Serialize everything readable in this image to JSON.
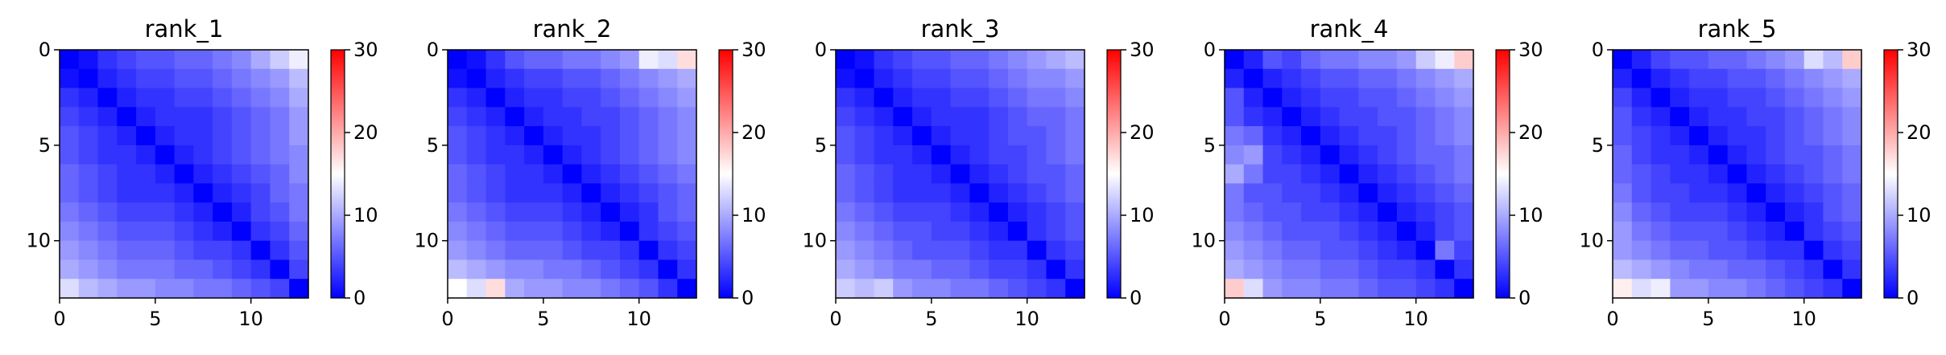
{
  "chart_data": [
    {
      "type": "heatmap",
      "title": "rank_1",
      "shape": [
        13,
        13
      ],
      "vmin": 0,
      "vmax": 30,
      "x_ticks": [
        "0",
        "5",
        "10"
      ],
      "x_tick_values": [
        0,
        5,
        10
      ],
      "y_ticks": [
        "0",
        "5",
        "10"
      ],
      "y_tick_values": [
        0,
        5,
        10
      ],
      "colorbar_ticks": [
        "0",
        "10",
        "20",
        "30"
      ],
      "colorbar_tick_values": [
        0,
        10,
        20,
        30
      ],
      "colormap": [
        "#0000ff",
        "#ffffff",
        "#ff0000"
      ],
      "values": [
        [
          0,
          1,
          3,
          4,
          5,
          5,
          6,
          6,
          7,
          8,
          10,
          12,
          14
        ],
        [
          1,
          0,
          2,
          3,
          4,
          4,
          5,
          5,
          6,
          7,
          8,
          9,
          11
        ],
        [
          3,
          2,
          0,
          2,
          3,
          3,
          4,
          4,
          5,
          6,
          7,
          8,
          10
        ],
        [
          4,
          3,
          2,
          0,
          2,
          3,
          3,
          3,
          4,
          5,
          6,
          7,
          9
        ],
        [
          5,
          4,
          3,
          2,
          0,
          2,
          3,
          3,
          4,
          5,
          6,
          7,
          9
        ],
        [
          5,
          4,
          3,
          3,
          2,
          0,
          2,
          3,
          4,
          5,
          6,
          7,
          8
        ],
        [
          6,
          5,
          4,
          3,
          3,
          2,
          0,
          2,
          3,
          4,
          5,
          6,
          8
        ],
        [
          6,
          5,
          4,
          3,
          3,
          3,
          2,
          0,
          2,
          3,
          4,
          6,
          7
        ],
        [
          7,
          6,
          5,
          4,
          4,
          4,
          3,
          2,
          0,
          2,
          4,
          5,
          7
        ],
        [
          8,
          7,
          6,
          5,
          5,
          5,
          4,
          3,
          2,
          0,
          3,
          4,
          6
        ],
        [
          9,
          8,
          7,
          6,
          6,
          6,
          5,
          4,
          4,
          3,
          0,
          3,
          5
        ],
        [
          10,
          9,
          8,
          7,
          7,
          7,
          6,
          6,
          5,
          4,
          3,
          0,
          4
        ],
        [
          13,
          11,
          10,
          9,
          9,
          8,
          8,
          7,
          7,
          6,
          5,
          4,
          0
        ]
      ]
    },
    {
      "type": "heatmap",
      "title": "rank_2",
      "shape": [
        13,
        13
      ],
      "vmin": 0,
      "vmax": 30,
      "x_ticks": [
        "0",
        "5",
        "10"
      ],
      "x_tick_values": [
        0,
        5,
        10
      ],
      "y_ticks": [
        "0",
        "5",
        "10"
      ],
      "y_tick_values": [
        0,
        5,
        10
      ],
      "colorbar_ticks": [
        "0",
        "10",
        "20",
        "30"
      ],
      "colorbar_tick_values": [
        0,
        10,
        20,
        30
      ],
      "colormap": [
        "#0000ff",
        "#ffffff",
        "#ff0000"
      ],
      "values": [
        [
          0,
          1,
          3,
          5,
          6,
          6,
          7,
          7,
          8,
          9,
          14,
          13,
          17
        ],
        [
          1,
          0,
          2,
          3,
          4,
          4,
          5,
          5,
          6,
          7,
          8,
          9,
          10
        ],
        [
          3,
          2,
          0,
          2,
          3,
          3,
          4,
          4,
          5,
          6,
          7,
          8,
          9
        ],
        [
          4,
          3,
          2,
          0,
          2,
          3,
          3,
          4,
          4,
          5,
          6,
          7,
          8
        ],
        [
          5,
          4,
          3,
          2,
          0,
          2,
          3,
          3,
          4,
          5,
          6,
          7,
          8
        ],
        [
          5,
          4,
          3,
          3,
          2,
          0,
          2,
          3,
          4,
          5,
          6,
          7,
          8
        ],
        [
          6,
          5,
          4,
          3,
          3,
          2,
          0,
          2,
          3,
          4,
          5,
          6,
          7
        ],
        [
          6,
          5,
          4,
          3,
          3,
          3,
          2,
          0,
          2,
          3,
          4,
          5,
          6
        ],
        [
          7,
          6,
          5,
          4,
          4,
          4,
          3,
          2,
          0,
          2,
          3,
          5,
          6
        ],
        [
          8,
          7,
          6,
          5,
          5,
          5,
          4,
          3,
          2,
          0,
          3,
          4,
          5
        ],
        [
          9,
          8,
          7,
          6,
          6,
          6,
          5,
          4,
          4,
          3,
          0,
          3,
          4
        ],
        [
          11,
          10,
          9,
          8,
          8,
          7,
          7,
          6,
          5,
          4,
          3,
          0,
          3
        ],
        [
          15,
          13,
          17,
          10,
          9,
          9,
          8,
          8,
          7,
          6,
          5,
          3,
          0
        ]
      ]
    },
    {
      "type": "heatmap",
      "title": "rank_3",
      "shape": [
        13,
        13
      ],
      "vmin": 0,
      "vmax": 30,
      "x_ticks": [
        "0",
        "5",
        "10"
      ],
      "x_tick_values": [
        0,
        5,
        10
      ],
      "y_ticks": [
        "0",
        "5",
        "10"
      ],
      "y_tick_values": [
        0,
        5,
        10
      ],
      "colorbar_ticks": [
        "0",
        "10",
        "20",
        "30"
      ],
      "colorbar_tick_values": [
        0,
        10,
        20,
        30
      ],
      "colormap": [
        "#0000ff",
        "#ffffff",
        "#ff0000"
      ],
      "values": [
        [
          0,
          1,
          3,
          4,
          5,
          5,
          6,
          6,
          7,
          8,
          9,
          10,
          11
        ],
        [
          1,
          0,
          2,
          3,
          4,
          4,
          5,
          5,
          6,
          7,
          8,
          8,
          9
        ],
        [
          3,
          2,
          0,
          2,
          3,
          3,
          4,
          4,
          5,
          6,
          7,
          7,
          8
        ],
        [
          4,
          3,
          2,
          0,
          2,
          3,
          3,
          3,
          4,
          5,
          6,
          6,
          7
        ],
        [
          5,
          4,
          3,
          2,
          0,
          2,
          3,
          3,
          4,
          5,
          5,
          6,
          7
        ],
        [
          5,
          4,
          3,
          3,
          2,
          0,
          2,
          3,
          4,
          4,
          5,
          6,
          7
        ],
        [
          6,
          5,
          4,
          3,
          3,
          2,
          0,
          2,
          3,
          4,
          5,
          5,
          6
        ],
        [
          6,
          5,
          4,
          3,
          3,
          3,
          2,
          0,
          2,
          3,
          4,
          5,
          6
        ],
        [
          7,
          6,
          5,
          4,
          4,
          4,
          3,
          2,
          0,
          2,
          3,
          4,
          5
        ],
        [
          8,
          7,
          6,
          5,
          5,
          4,
          4,
          3,
          2,
          0,
          3,
          4,
          5
        ],
        [
          9,
          8,
          7,
          6,
          5,
          5,
          5,
          4,
          3,
          3,
          0,
          3,
          4
        ],
        [
          10,
          9,
          8,
          7,
          7,
          6,
          6,
          5,
          4,
          4,
          3,
          0,
          3
        ],
        [
          12,
          11,
          12,
          9,
          8,
          8,
          7,
          7,
          6,
          5,
          4,
          3,
          0
        ]
      ]
    },
    {
      "type": "heatmap",
      "title": "rank_4",
      "shape": [
        13,
        13
      ],
      "vmin": 0,
      "vmax": 30,
      "x_ticks": [
        "0",
        "5",
        "10"
      ],
      "x_tick_values": [
        0,
        5,
        10
      ],
      "y_ticks": [
        "0",
        "5",
        "10"
      ],
      "y_tick_values": [
        0,
        5,
        10
      ],
      "colorbar_ticks": [
        "0",
        "10",
        "20",
        "30"
      ],
      "colorbar_tick_values": [
        0,
        10,
        20,
        30
      ],
      "colormap": [
        "#0000ff",
        "#ffffff",
        "#ff0000"
      ],
      "values": [
        [
          0,
          2,
          5,
          4,
          6,
          7,
          7,
          8,
          8,
          9,
          12,
          14,
          18
        ],
        [
          2,
          0,
          2,
          3,
          4,
          5,
          5,
          6,
          6,
          7,
          8,
          9,
          10
        ],
        [
          5,
          2,
          0,
          2,
          3,
          4,
          4,
          5,
          5,
          6,
          7,
          8,
          9
        ],
        [
          5,
          3,
          2,
          0,
          2,
          3,
          4,
          4,
          5,
          5,
          6,
          7,
          8
        ],
        [
          7,
          6,
          3,
          2,
          0,
          2,
          3,
          4,
          4,
          5,
          6,
          7,
          8
        ],
        [
          8,
          9,
          4,
          3,
          2,
          0,
          2,
          3,
          4,
          5,
          6,
          6,
          7
        ],
        [
          10,
          7,
          4,
          4,
          3,
          2,
          0,
          2,
          3,
          4,
          5,
          6,
          7
        ],
        [
          7,
          5,
          5,
          4,
          4,
          3,
          2,
          0,
          2,
          3,
          4,
          5,
          6
        ],
        [
          7,
          6,
          5,
          5,
          4,
          4,
          3,
          2,
          0,
          2,
          3,
          4,
          5
        ],
        [
          8,
          7,
          6,
          5,
          5,
          5,
          4,
          3,
          2,
          0,
          2,
          4,
          5
        ],
        [
          9,
          8,
          7,
          6,
          6,
          5,
          5,
          4,
          3,
          2,
          0,
          7,
          4
        ],
        [
          10,
          9,
          8,
          7,
          7,
          6,
          6,
          5,
          4,
          4,
          3,
          0,
          3
        ],
        [
          18,
          13,
          9,
          8,
          8,
          7,
          7,
          6,
          5,
          5,
          4,
          3,
          0
        ]
      ]
    },
    {
      "type": "heatmap",
      "title": "rank_5",
      "shape": [
        13,
        13
      ],
      "vmin": 0,
      "vmax": 30,
      "x_ticks": [
        "0",
        "5",
        "10"
      ],
      "x_tick_values": [
        0,
        5,
        10
      ],
      "y_ticks": [
        "0",
        "5",
        "10"
      ],
      "y_tick_values": [
        0,
        5,
        10
      ],
      "colorbar_ticks": [
        "0",
        "10",
        "20",
        "30"
      ],
      "colorbar_tick_values": [
        0,
        10,
        20,
        30
      ],
      "colormap": [
        "#0000ff",
        "#ffffff",
        "#ff0000"
      ],
      "values": [
        [
          0,
          2,
          4,
          5,
          5,
          6,
          6,
          7,
          8,
          9,
          13,
          11,
          18
        ],
        [
          2,
          0,
          2,
          3,
          4,
          4,
          5,
          5,
          6,
          7,
          8,
          9,
          10
        ],
        [
          4,
          2,
          0,
          2,
          3,
          3,
          4,
          4,
          5,
          6,
          7,
          8,
          9
        ],
        [
          5,
          3,
          2,
          0,
          2,
          3,
          3,
          4,
          4,
          5,
          6,
          7,
          8
        ],
        [
          5,
          4,
          3,
          2,
          0,
          2,
          3,
          3,
          4,
          5,
          6,
          7,
          8
        ],
        [
          6,
          4,
          3,
          3,
          2,
          0,
          2,
          3,
          4,
          5,
          5,
          6,
          7
        ],
        [
          6,
          5,
          4,
          3,
          3,
          2,
          0,
          2,
          3,
          4,
          5,
          6,
          7
        ],
        [
          7,
          5,
          4,
          4,
          3,
          3,
          2,
          0,
          2,
          3,
          4,
          5,
          6
        ],
        [
          8,
          6,
          5,
          4,
          4,
          4,
          3,
          2,
          0,
          2,
          3,
          5,
          6
        ],
        [
          9,
          7,
          6,
          5,
          5,
          5,
          4,
          3,
          2,
          0,
          3,
          4,
          5
        ],
        [
          9,
          8,
          7,
          6,
          6,
          5,
          5,
          4,
          3,
          3,
          0,
          3,
          4
        ],
        [
          11,
          10,
          9,
          8,
          7,
          7,
          6,
          6,
          5,
          4,
          3,
          0,
          3
        ],
        [
          16,
          13,
          14,
          9,
          9,
          8,
          8,
          7,
          6,
          5,
          4,
          3,
          0
        ]
      ]
    }
  ]
}
